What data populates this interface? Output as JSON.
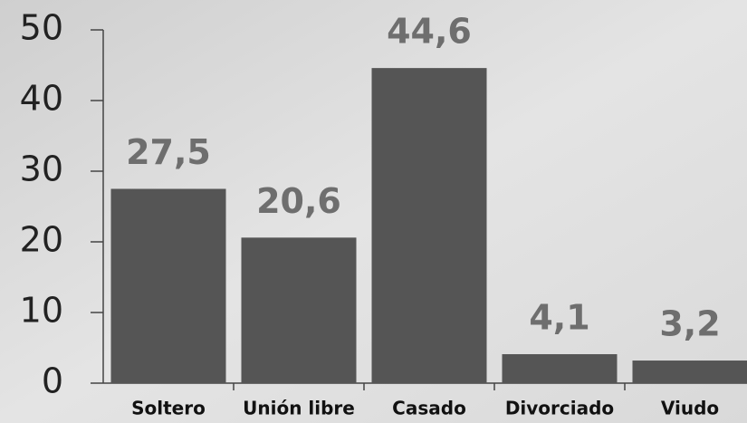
{
  "chart_data": {
    "type": "bar",
    "categories": [
      "Soltero",
      "Unión libre",
      "Casado",
      "Divorciado",
      "Viudo"
    ],
    "values": [
      27.5,
      20.6,
      44.6,
      4.1,
      3.2
    ],
    "value_labels": [
      "27,5",
      "20,6",
      "44,6",
      "4,1",
      "3,2"
    ],
    "color": "#555555",
    "ylim": [
      0,
      50
    ],
    "yticks": [
      0,
      10,
      20,
      30,
      40,
      50
    ]
  }
}
